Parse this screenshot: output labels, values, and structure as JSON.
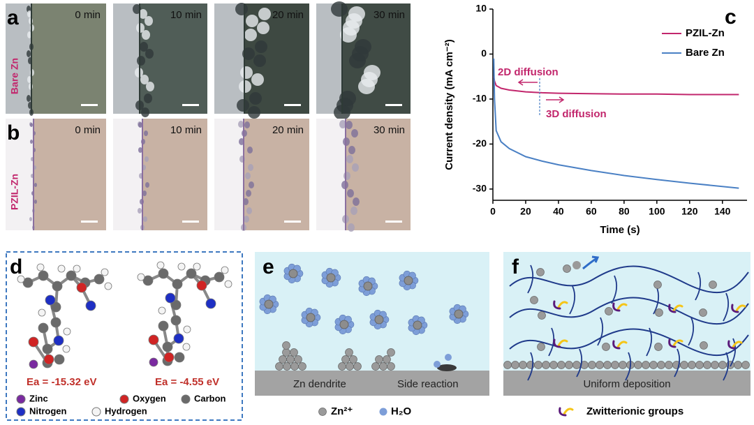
{
  "panels": {
    "a": {
      "label": "a",
      "sample": "Bare Zn",
      "times": [
        "0 min",
        "10 min",
        "20 min",
        "30 min"
      ]
    },
    "b": {
      "label": "b",
      "sample": "PZIL-Zn",
      "times": [
        "0 min",
        "10 min",
        "20 min",
        "30 min"
      ]
    },
    "c": {
      "label": "c"
    },
    "d": {
      "label": "d",
      "energies": [
        "Ea = -15.32 eV",
        "Ea = -4.55 eV"
      ],
      "legend": [
        "Zinc",
        "Oxygen",
        "Carbon",
        "Nitrogen",
        "Hydrogen"
      ]
    },
    "e": {
      "label": "e",
      "captions": [
        "Zn dendrite",
        "Side reaction"
      ],
      "legend": [
        "Zn²⁺",
        "H₂O"
      ]
    },
    "f": {
      "label": "f",
      "caption": "Uniform deposition",
      "legend": "Zwitterionic groups"
    }
  },
  "chart_data": {
    "type": "line",
    "xlabel": "Time (s)",
    "ylabel": "Current density (mA cm⁻²)",
    "xlim": [
      0,
      155
    ],
    "ylim": [
      -32.5,
      10
    ],
    "xticks": [
      0,
      20,
      40,
      60,
      80,
      100,
      120,
      140
    ],
    "yticks": [
      10,
      0,
      -10,
      -20,
      -30
    ],
    "legend": "upper right",
    "annotations": [
      "2D diffusion",
      "3D diffusion"
    ],
    "x": [
      0.5,
      1,
      2,
      5,
      10,
      20,
      30,
      40,
      60,
      80,
      100,
      120,
      150
    ],
    "series": [
      {
        "name": "PZIL-Zn",
        "color": "#c2266c",
        "values": [
          -5,
          -6,
          -7,
          -7.6,
          -8,
          -8.4,
          -8.6,
          -8.7,
          -8.8,
          -8.9,
          -8.9,
          -9,
          -9
        ]
      },
      {
        "name": "Bare Zn",
        "color": "#4a80c4",
        "values": [
          -1,
          -10,
          -17,
          -19.5,
          -21,
          -22.8,
          -23.8,
          -24.6,
          -25.9,
          -27,
          -27.9,
          -28.7,
          -29.8
        ]
      }
    ]
  }
}
